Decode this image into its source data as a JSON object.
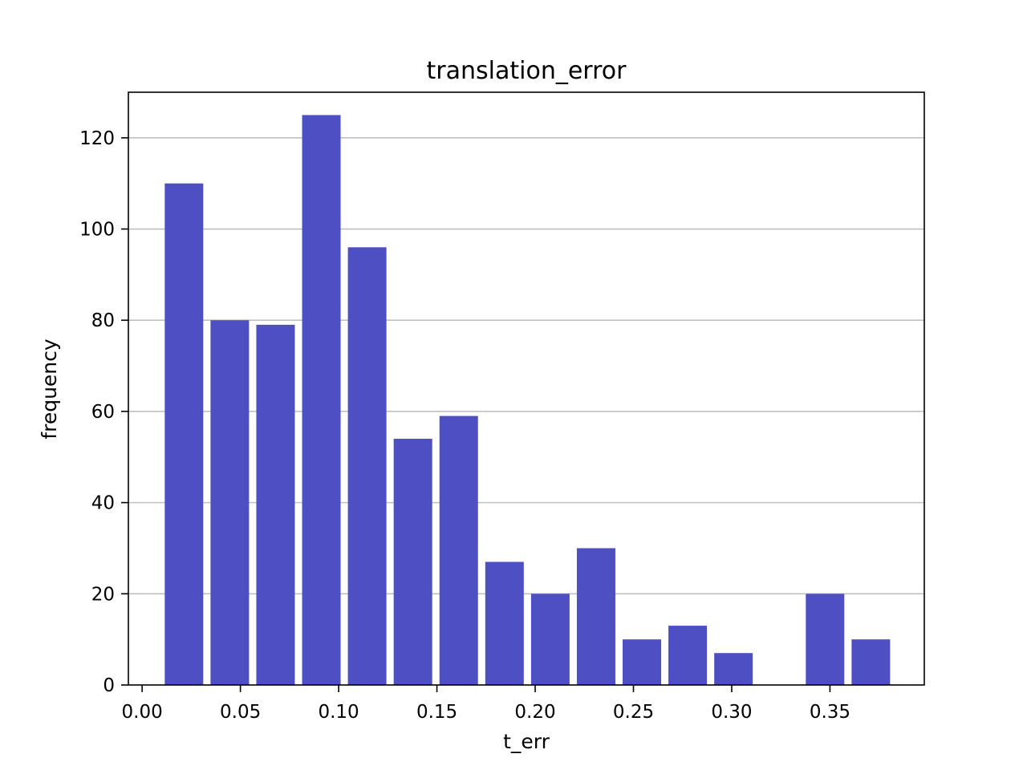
{
  "chart_data": {
    "type": "bar",
    "title": "translation_error",
    "xlabel": "t_err",
    "ylabel": "frequency",
    "xlim": [
      -0.007,
      0.398
    ],
    "ylim": [
      0,
      130
    ],
    "xticks": [
      0.0,
      0.05,
      0.1,
      0.15,
      0.2,
      0.25,
      0.3,
      0.35
    ],
    "xtick_labels": [
      "0.00",
      "0.05",
      "0.10",
      "0.15",
      "0.20",
      "0.25",
      "0.30",
      "0.35"
    ],
    "yticks": [
      0,
      20,
      40,
      60,
      80,
      100,
      120
    ],
    "ytick_labels": [
      "0",
      "20",
      "40",
      "60",
      "80",
      "100",
      "120"
    ],
    "grid": "y",
    "bar_color": "#4f4fc4",
    "bin_width": 0.0233,
    "bars": [
      {
        "x_left": 0.0115,
        "x_right": 0.0311,
        "value": 110
      },
      {
        "x_left": 0.0348,
        "x_right": 0.0544,
        "value": 80
      },
      {
        "x_left": 0.0581,
        "x_right": 0.0777,
        "value": 79
      },
      {
        "x_left": 0.0814,
        "x_right": 0.101,
        "value": 125
      },
      {
        "x_left": 0.1047,
        "x_right": 0.1243,
        "value": 96
      },
      {
        "x_left": 0.128,
        "x_right": 0.1476,
        "value": 54
      },
      {
        "x_left": 0.1513,
        "x_right": 0.1709,
        "value": 59
      },
      {
        "x_left": 0.1746,
        "x_right": 0.1942,
        "value": 27
      },
      {
        "x_left": 0.1979,
        "x_right": 0.2175,
        "value": 20
      },
      {
        "x_left": 0.2212,
        "x_right": 0.2408,
        "value": 30
      },
      {
        "x_left": 0.2445,
        "x_right": 0.2641,
        "value": 10
      },
      {
        "x_left": 0.2678,
        "x_right": 0.2874,
        "value": 13
      },
      {
        "x_left": 0.2911,
        "x_right": 0.3107,
        "value": 7
      },
      {
        "x_left": 0.3144,
        "x_right": 0.334,
        "value": 0
      },
      {
        "x_left": 0.3377,
        "x_right": 0.3573,
        "value": 20
      },
      {
        "x_left": 0.361,
        "x_right": 0.3806,
        "value": 10
      }
    ]
  }
}
